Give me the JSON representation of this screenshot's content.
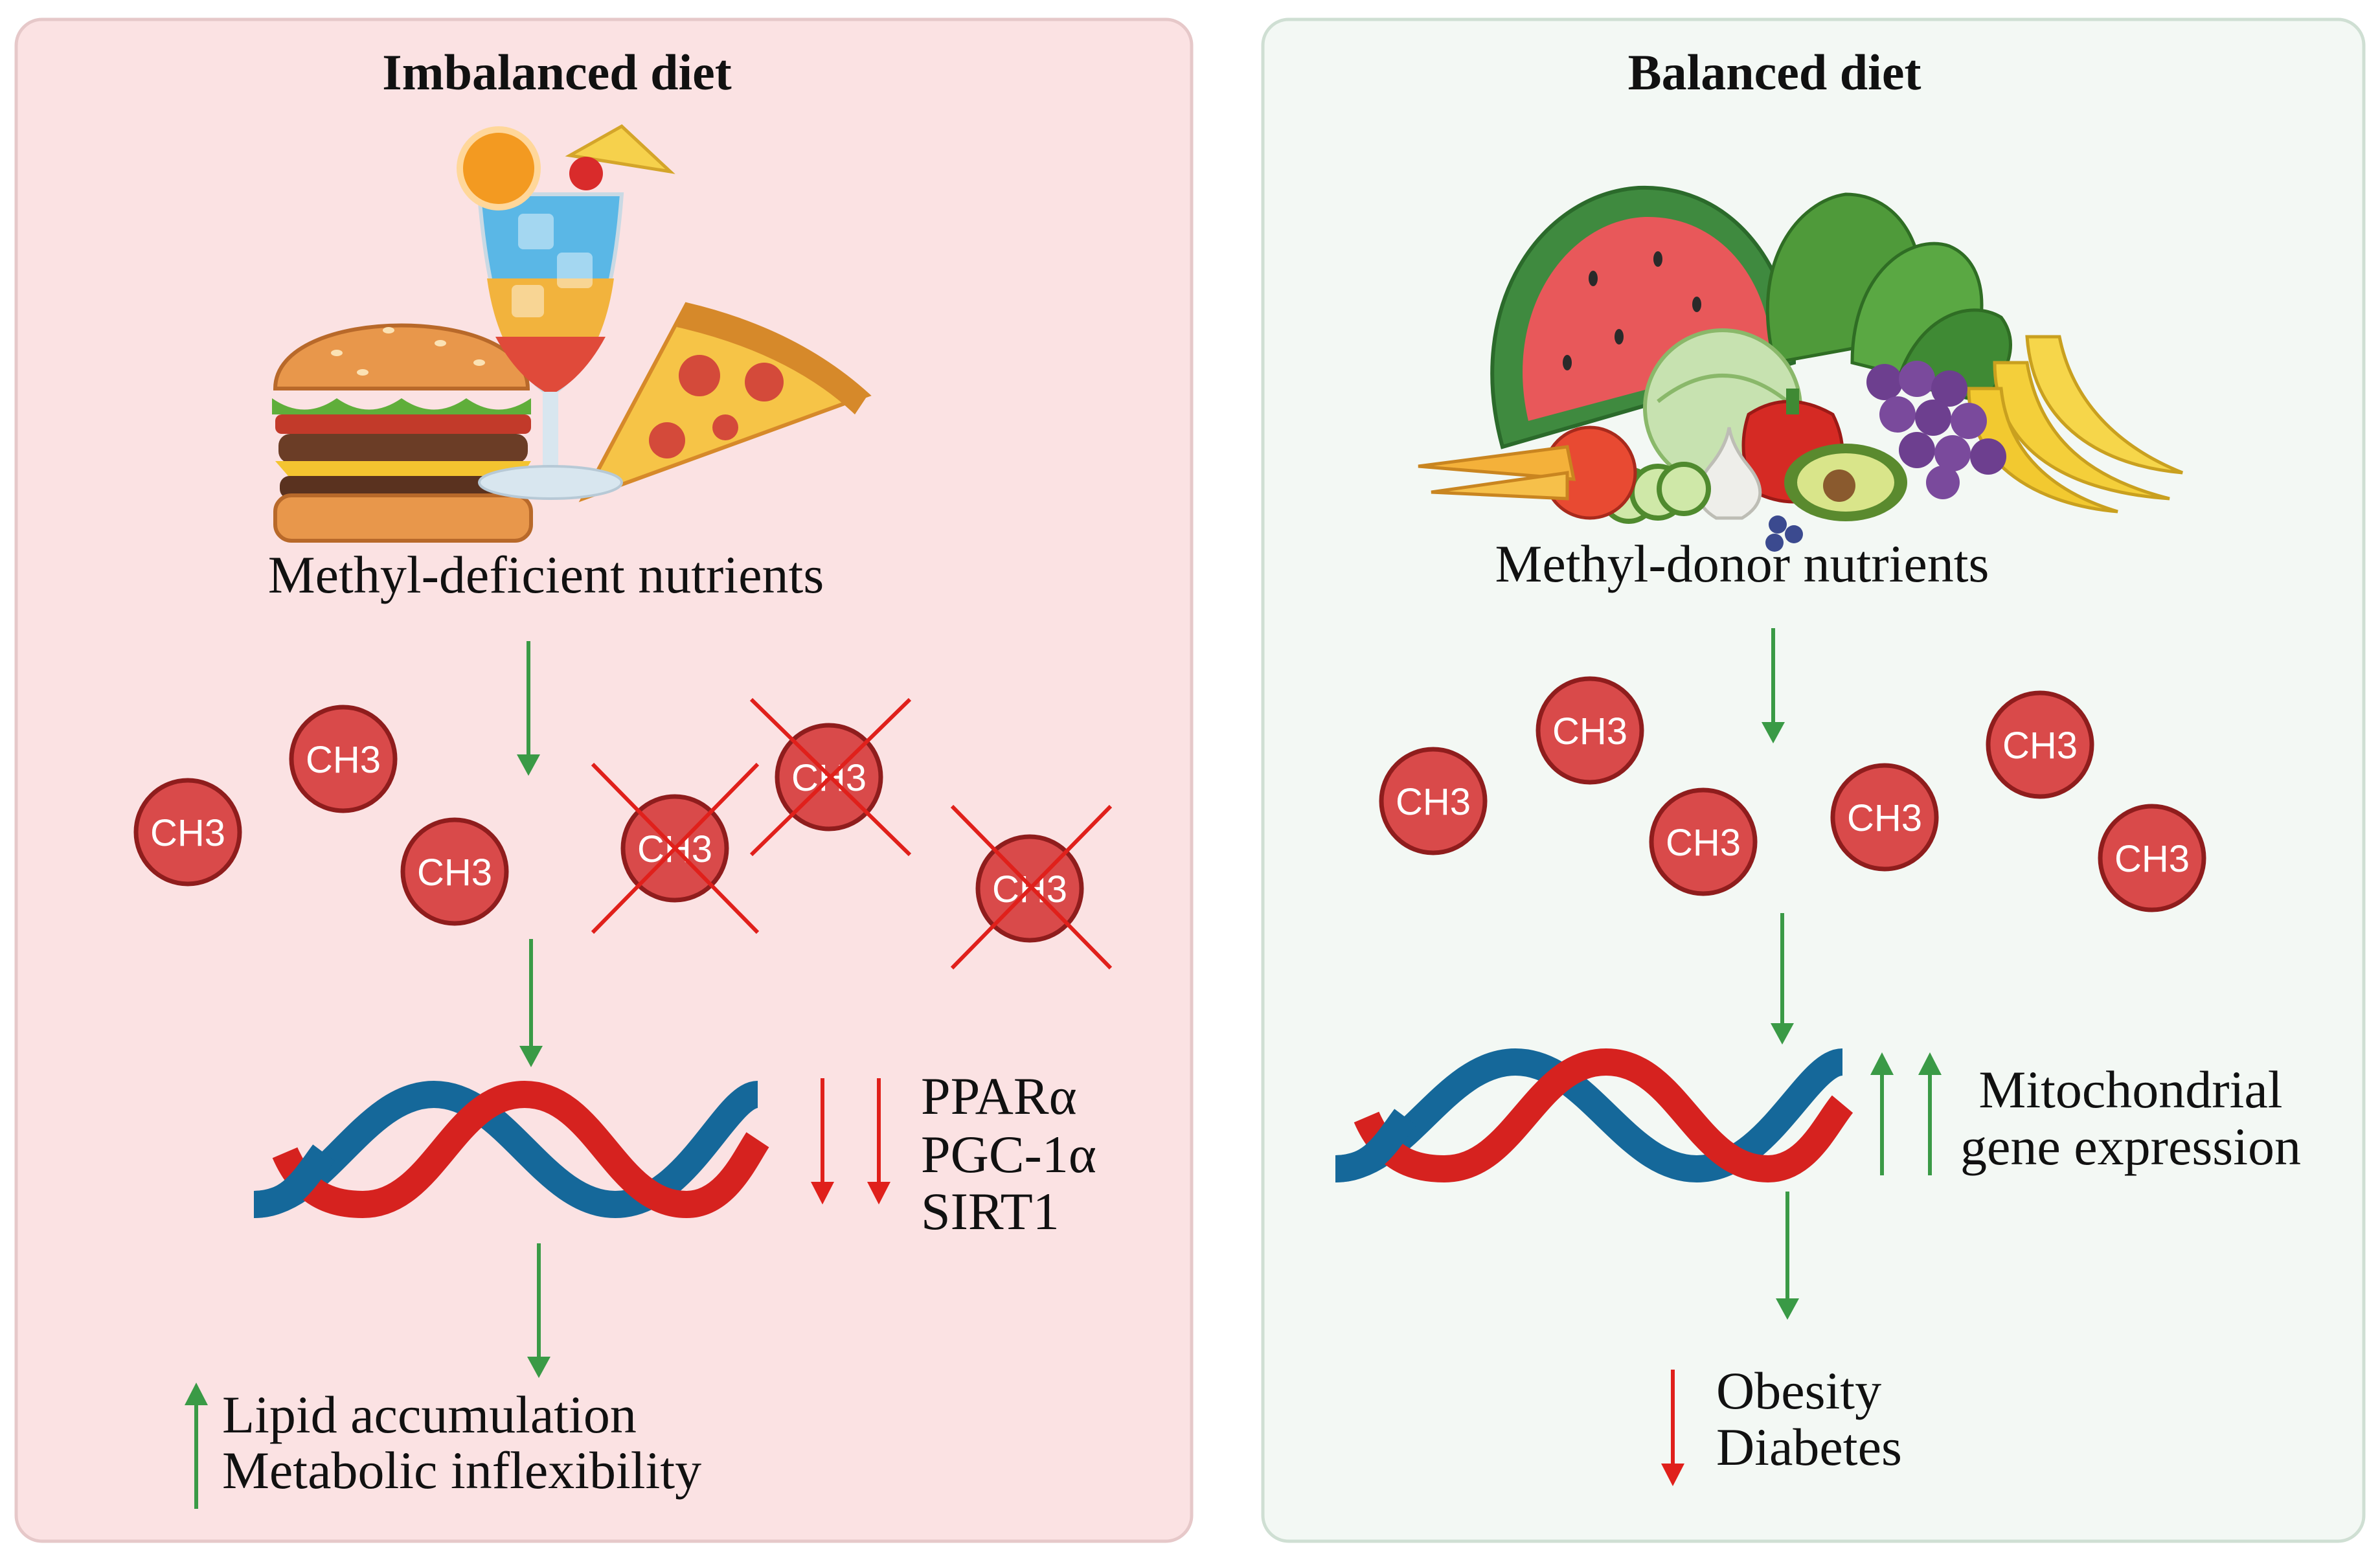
{
  "colors": {
    "left_panel_bg": "#fbe2e3",
    "left_panel_border": "#e6c8c9",
    "right_panel_bg": "#f3f8f4",
    "right_panel_border": "#cfdfd3",
    "up_arrow": "#3a9a46",
    "down_arrow": "#e0201b",
    "flow_arrow": "#3a9a46",
    "ch3_fill": "#d94a4a",
    "ch3_stroke": "#8f1d1d",
    "cross": "#e0201b",
    "dna_blue": "#15689a",
    "dna_red": "#d6221f"
  },
  "left": {
    "title": "Imbalanced diet",
    "nutrients_label": "Methyl-deficient nutrients",
    "ch3_intact": [
      "CH3",
      "CH3",
      "CH3"
    ],
    "ch3_crossed": [
      "CH3",
      "CH3",
      "CH3"
    ],
    "genes": [
      "PPARα",
      "PGC-1α",
      "SIRT1"
    ],
    "outcomes": [
      "Lipid accumulation",
      "Metabolic inflexibility"
    ]
  },
  "right": {
    "title": "Balanced diet",
    "nutrients_label": "Methyl-donor nutrients",
    "ch3_molecules": [
      "CH3",
      "CH3",
      "CH3",
      "CH3",
      "CH3",
      "CH3"
    ],
    "genes_line1": "Mitochondrial",
    "genes_line2": "gene expression",
    "outcomes": [
      "Obesity",
      "Diabetes"
    ]
  }
}
